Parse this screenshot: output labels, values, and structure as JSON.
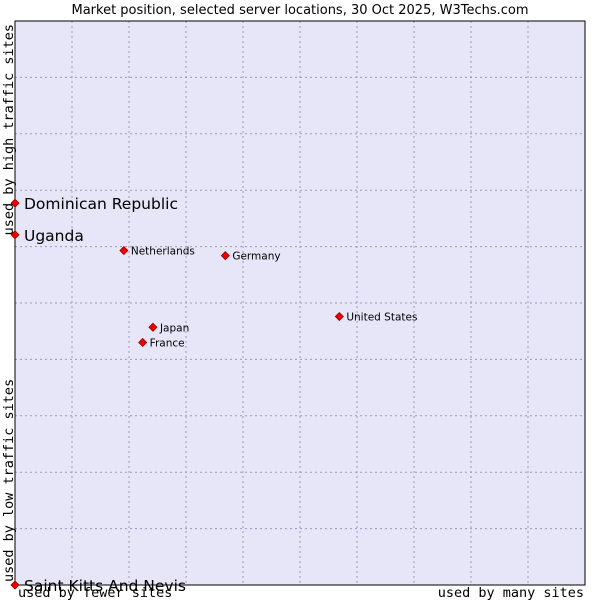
{
  "chart_data": {
    "type": "scatter",
    "title": "Market position, selected server locations, 30 Oct 2025, W3Techs.com",
    "xlabel_left": "used by fewer sites",
    "xlabel_right": "used by many sites",
    "ylabel_bottom": "used by low traffic sites",
    "ylabel_top": "used by high traffic sites",
    "xlim": [
      0,
      100
    ],
    "ylim": [
      0,
      100
    ],
    "grid": true,
    "colors": {
      "plot_background": "#e6e6f8",
      "marker_fill": "#ee0000",
      "marker_stroke": "#990000",
      "grid": "#9a9ab8",
      "frame": "#000000"
    },
    "points": [
      {
        "label": "Dominican Republic",
        "x": 0.0,
        "y": 67.7,
        "highlight": true
      },
      {
        "label": "Uganda",
        "x": 0.0,
        "y": 62.1,
        "highlight": true
      },
      {
        "label": "Saint Kitts And Nevis",
        "x": 0.0,
        "y": 0.0,
        "highlight": true
      },
      {
        "label": "Netherlands",
        "x": 19.1,
        "y": 59.3,
        "highlight": false
      },
      {
        "label": "Germany",
        "x": 36.9,
        "y": 58.4,
        "highlight": false
      },
      {
        "label": "United States",
        "x": 56.9,
        "y": 47.6,
        "highlight": false
      },
      {
        "label": "Japan",
        "x": 24.2,
        "y": 45.7,
        "highlight": false
      },
      {
        "label": "France",
        "x": 22.4,
        "y": 43.0,
        "highlight": false
      }
    ]
  }
}
